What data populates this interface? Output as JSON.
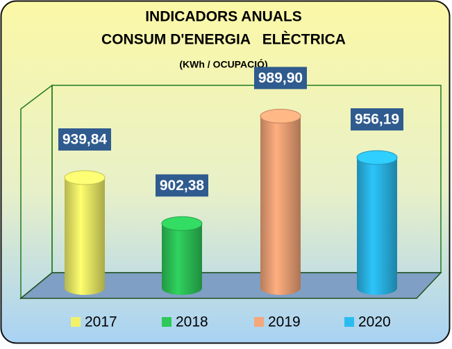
{
  "chart_data": {
    "type": "cylinder",
    "title": "INDICADORS ANUALS",
    "subtitle": "CONSUM D'ENERGIA   ELÈCTRICA",
    "unit_label": "(KWh / OCUPACIÓ)",
    "categories": [
      "2017",
      "2018",
      "2019",
      "2020"
    ],
    "values": [
      939.84,
      902.38,
      989.9,
      956.19
    ],
    "value_labels": [
      "939,84",
      "902,38",
      "989,90",
      "956,19"
    ],
    "colors": [
      "#f2f26a",
      "#2ec95a",
      "#f5a77a",
      "#2bbcef"
    ],
    "ylim": [
      850,
      1015
    ]
  }
}
